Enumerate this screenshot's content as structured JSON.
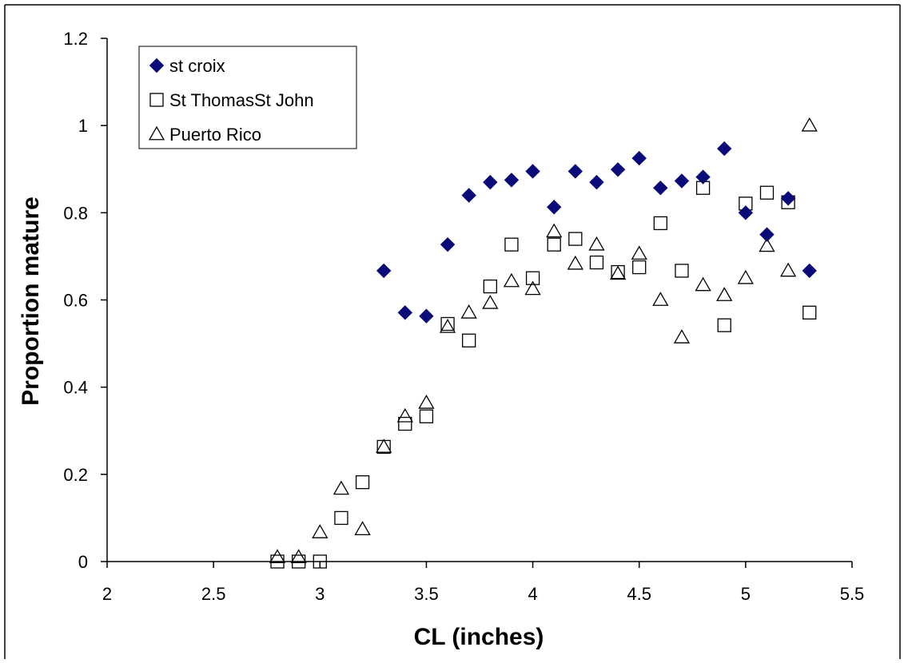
{
  "chart_data": {
    "type": "scatter",
    "title": "",
    "xlabel": "CL (inches)",
    "ylabel": "Proportion mature",
    "xlim": [
      2,
      5.5
    ],
    "ylim": [
      0,
      1.2
    ],
    "x_ticks": [
      "2",
      "2.5",
      "3",
      "3.5",
      "4",
      "4.5",
      "5",
      "5.5"
    ],
    "y_ticks": [
      "0",
      "0.2",
      "0.4",
      "0.6",
      "0.8",
      "1",
      "1.2"
    ],
    "grid": false,
    "legend_position": "top-left",
    "series": [
      {
        "name": "st croix",
        "marker": "filled-diamond",
        "color": "#0a0a78",
        "x": [
          3.3,
          3.4,
          3.5,
          3.6,
          3.7,
          3.8,
          3.9,
          4.0,
          4.1,
          4.2,
          4.3,
          4.4,
          4.5,
          4.6,
          4.7,
          4.8,
          4.9,
          5.0,
          5.1,
          5.2,
          5.3
        ],
        "y": [
          0.667,
          0.571,
          0.563,
          0.727,
          0.84,
          0.87,
          0.875,
          0.895,
          0.813,
          0.895,
          0.87,
          0.899,
          0.925,
          0.857,
          0.873,
          0.882,
          0.947,
          0.8,
          0.75,
          0.833,
          0.667
        ]
      },
      {
        "name": "St ThomasSt John",
        "marker": "open-square",
        "color": "#000000",
        "x": [
          2.8,
          2.9,
          3.0,
          3.1,
          3.2,
          3.3,
          3.4,
          3.5,
          3.6,
          3.7,
          3.8,
          3.9,
          4.0,
          4.1,
          4.2,
          4.3,
          4.4,
          4.5,
          4.6,
          4.7,
          4.8,
          4.9,
          5.0,
          5.1,
          5.2,
          5.3
        ],
        "y": [
          0.0,
          0.0,
          0.0,
          0.1,
          0.182,
          0.263,
          0.316,
          0.333,
          0.545,
          0.507,
          0.631,
          0.727,
          0.65,
          0.727,
          0.74,
          0.686,
          0.664,
          0.675,
          0.776,
          0.667,
          0.857,
          0.542,
          0.821,
          0.846,
          0.824,
          0.571
        ]
      },
      {
        "name": "Puerto Rico",
        "marker": "open-triangle",
        "color": "#000000",
        "x": [
          2.8,
          2.9,
          3.0,
          3.1,
          3.2,
          3.3,
          3.4,
          3.5,
          3.6,
          3.7,
          3.8,
          3.9,
          4.0,
          4.1,
          4.2,
          4.3,
          4.4,
          4.5,
          4.6,
          4.7,
          4.8,
          4.9,
          5.0,
          5.1,
          5.2,
          5.3
        ],
        "y": [
          0.01,
          0.01,
          0.067,
          0.167,
          0.074,
          0.263,
          0.333,
          0.364,
          0.538,
          0.571,
          0.593,
          0.643,
          0.625,
          0.757,
          0.683,
          0.727,
          0.66,
          0.706,
          0.6,
          0.514,
          0.634,
          0.611,
          0.65,
          0.724,
          0.667,
          1.0
        ]
      }
    ]
  }
}
